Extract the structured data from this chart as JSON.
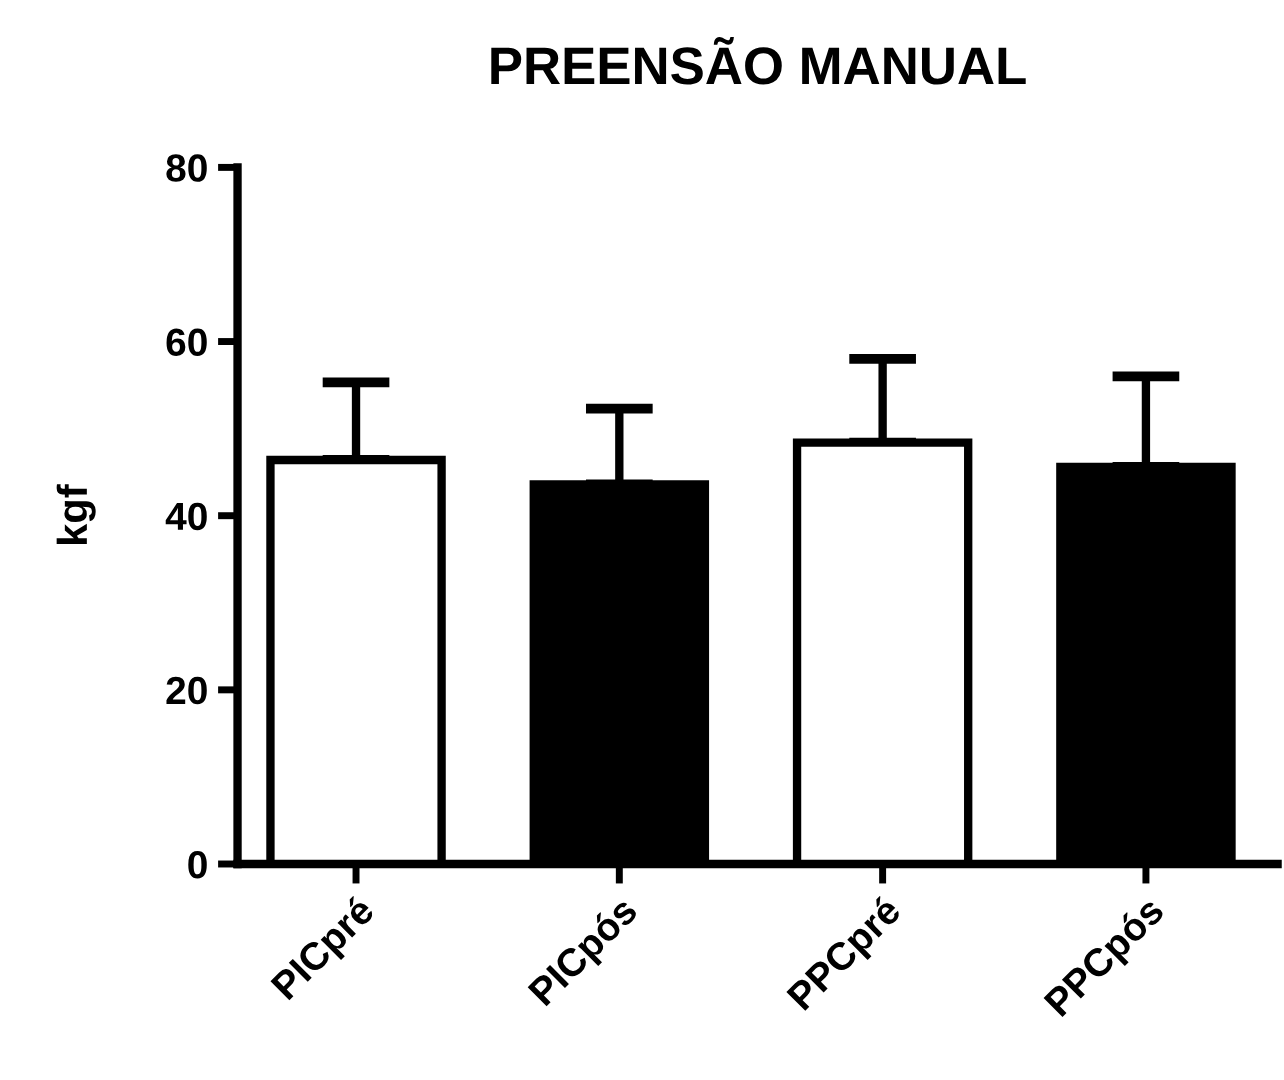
{
  "chart_data": {
    "type": "bar",
    "title": "PREENSÃO MANUAL",
    "ylabel": "kgf",
    "categories": [
      "PICpré",
      "PICpós",
      "PPCpré",
      "PPCpós"
    ],
    "values": [
      46.4,
      43.6,
      48.4,
      45.6
    ],
    "colors": [
      "#ffffff",
      "#000000",
      "#ffffff",
      "#000000"
    ],
    "errors": [
      [
        46.4,
        55.3
      ],
      [
        43.6,
        52.3
      ],
      [
        48.4,
        58.0
      ],
      [
        45.6,
        56.0
      ]
    ],
    "ylim": [
      0,
      80
    ],
    "yticks": [
      0,
      20,
      40,
      60,
      80
    ],
    "grid": false,
    "legend": false
  }
}
